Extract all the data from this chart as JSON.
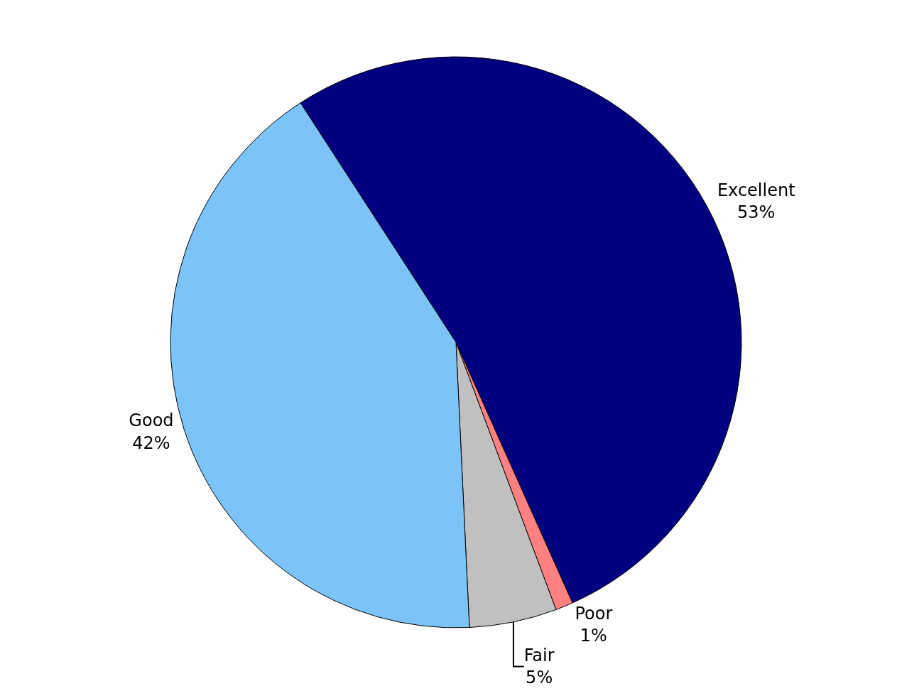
{
  "chart_data": {
    "type": "pie",
    "categories": [
      "Excellent",
      "Poor",
      "Fair",
      "Good"
    ],
    "values": [
      53,
      1,
      5,
      42
    ],
    "value_labels": [
      "53%",
      "1%",
      "5%",
      "42%"
    ],
    "colors": [
      "#000080",
      "#ff8080",
      "#c0c0c0",
      "#7cc4f8"
    ],
    "legend": false
  }
}
